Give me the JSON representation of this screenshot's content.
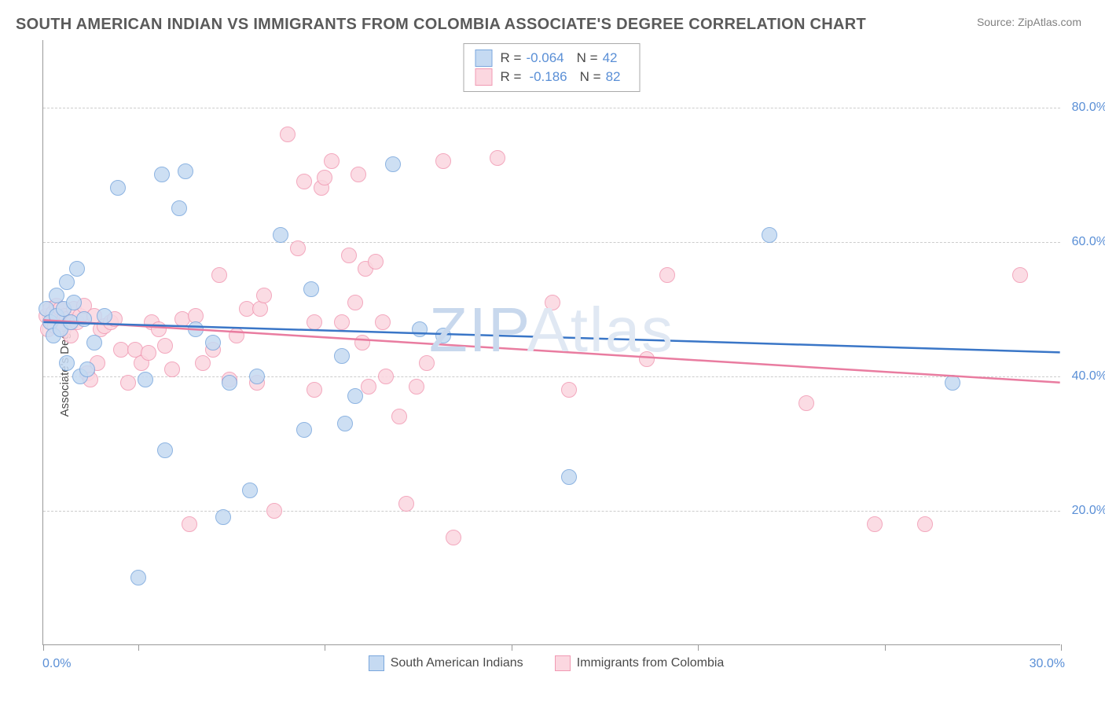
{
  "title": "SOUTH AMERICAN INDIAN VS IMMIGRANTS FROM COLOMBIA ASSOCIATE'S DEGREE CORRELATION CHART",
  "source": "Source: ZipAtlas.com",
  "y_axis_label": "Associate's Degree",
  "x_axis": {
    "min": 0,
    "max": 30,
    "label_left": "0.0%",
    "label_right": "30.0%",
    "ticks": [
      0,
      2.8,
      8.3,
      13.8,
      19.3,
      24.8,
      30
    ]
  },
  "y_axis": {
    "min": 0,
    "max": 90,
    "gridlines": [
      {
        "value": 20,
        "label": "20.0%"
      },
      {
        "value": 40,
        "label": "40.0%"
      },
      {
        "value": 60,
        "label": "60.0%"
      },
      {
        "value": 80,
        "label": "80.0%"
      }
    ]
  },
  "colors": {
    "blue_fill": "#c5daf2",
    "blue_stroke": "#7aa7dd",
    "pink_fill": "#fbd7e0",
    "pink_stroke": "#f19ab3",
    "blue_line": "#3a76c7",
    "pink_line": "#e97ca0",
    "grid": "#cccccc",
    "axis": "#999999",
    "label_blue": "#5a8fd6",
    "text_gray": "#4a4a4a",
    "watermark": "#e6edf6"
  },
  "marker_radius": 10,
  "marker_border": 1.5,
  "top_legend": [
    {
      "color": "blue",
      "r": "-0.064",
      "n": "42"
    },
    {
      "color": "pink",
      "r": "-0.186",
      "n": "82"
    }
  ],
  "bottom_legend": [
    {
      "color": "blue",
      "label": "South American Indians"
    },
    {
      "color": "pink",
      "label": "Immigrants from Colombia"
    }
  ],
  "trend_lines": {
    "blue": {
      "y_start": 48.0,
      "y_end": 43.5
    },
    "pink": {
      "y_start": 48.3,
      "y_end": 39.0
    }
  },
  "watermark": {
    "text1": "ZIP",
    "text2": "Atlas",
    "color1": "#c8d8ed",
    "color2": "#e0e8f3"
  },
  "series_blue": [
    [
      0.1,
      50
    ],
    [
      0.2,
      48
    ],
    [
      0.3,
      46
    ],
    [
      0.4,
      52
    ],
    [
      0.4,
      49
    ],
    [
      0.5,
      47
    ],
    [
      0.6,
      50
    ],
    [
      0.7,
      42
    ],
    [
      0.7,
      54
    ],
    [
      0.8,
      48
    ],
    [
      0.9,
      51
    ],
    [
      1.0,
      56
    ],
    [
      1.1,
      40
    ],
    [
      1.2,
      48.5
    ],
    [
      1.3,
      41
    ],
    [
      1.5,
      45
    ],
    [
      1.8,
      49
    ],
    [
      2.2,
      68
    ],
    [
      2.8,
      10
    ],
    [
      3.0,
      39.5
    ],
    [
      3.5,
      70
    ],
    [
      3.6,
      29
    ],
    [
      4.0,
      65
    ],
    [
      4.2,
      70.5
    ],
    [
      4.5,
      47
    ],
    [
      5.0,
      45
    ],
    [
      5.3,
      19
    ],
    [
      5.5,
      39
    ],
    [
      6.1,
      23
    ],
    [
      6.3,
      40
    ],
    [
      7.0,
      61
    ],
    [
      7.7,
      32
    ],
    [
      7.9,
      53
    ],
    [
      8.8,
      43
    ],
    [
      8.9,
      33
    ],
    [
      9.2,
      37
    ],
    [
      10.3,
      71.5
    ],
    [
      11.1,
      47
    ],
    [
      11.8,
      46
    ],
    [
      15.5,
      25
    ],
    [
      21.4,
      61
    ],
    [
      26.8,
      39
    ]
  ],
  "series_pink": [
    [
      0.1,
      49
    ],
    [
      0.15,
      47
    ],
    [
      0.2,
      50
    ],
    [
      0.25,
      48
    ],
    [
      0.3,
      49.5
    ],
    [
      0.35,
      47.5
    ],
    [
      0.4,
      50.5
    ],
    [
      0.45,
      49
    ],
    [
      0.5,
      50
    ],
    [
      0.55,
      48
    ],
    [
      0.6,
      47
    ],
    [
      0.65,
      49
    ],
    [
      0.7,
      48.5
    ],
    [
      0.8,
      46
    ],
    [
      0.85,
      48
    ],
    [
      0.9,
      50
    ],
    [
      1.0,
      48
    ],
    [
      1.1,
      49
    ],
    [
      1.2,
      50.5
    ],
    [
      1.3,
      40.5
    ],
    [
      1.4,
      39.5
    ],
    [
      1.5,
      49
    ],
    [
      1.6,
      42
    ],
    [
      1.7,
      47
    ],
    [
      1.8,
      47.5
    ],
    [
      2.0,
      48
    ],
    [
      2.1,
      48.5
    ],
    [
      2.3,
      44
    ],
    [
      2.5,
      39
    ],
    [
      2.7,
      44
    ],
    [
      2.9,
      42
    ],
    [
      3.1,
      43.5
    ],
    [
      3.2,
      48
    ],
    [
      3.4,
      47
    ],
    [
      3.6,
      44.5
    ],
    [
      3.8,
      41
    ],
    [
      4.1,
      48.5
    ],
    [
      4.3,
      18
    ],
    [
      4.5,
      49
    ],
    [
      4.7,
      42
    ],
    [
      5.0,
      44
    ],
    [
      5.2,
      55
    ],
    [
      5.5,
      39.5
    ],
    [
      5.7,
      46
    ],
    [
      6.0,
      50
    ],
    [
      6.3,
      39
    ],
    [
      6.4,
      50
    ],
    [
      6.5,
      52
    ],
    [
      6.8,
      20
    ],
    [
      7.2,
      76
    ],
    [
      7.5,
      59
    ],
    [
      7.7,
      69
    ],
    [
      8.0,
      38
    ],
    [
      8.0,
      48
    ],
    [
      8.2,
      68
    ],
    [
      8.3,
      69.5
    ],
    [
      8.5,
      72
    ],
    [
      8.8,
      48
    ],
    [
      9.0,
      58
    ],
    [
      9.2,
      51
    ],
    [
      9.3,
      70
    ],
    [
      9.4,
      45
    ],
    [
      9.5,
      56
    ],
    [
      9.6,
      38.5
    ],
    [
      9.8,
      57
    ],
    [
      10.0,
      48
    ],
    [
      10.1,
      40
    ],
    [
      10.5,
      34
    ],
    [
      10.7,
      21
    ],
    [
      11.0,
      38.5
    ],
    [
      11.3,
      42
    ],
    [
      11.8,
      72
    ],
    [
      12.1,
      16
    ],
    [
      13.4,
      72.5
    ],
    [
      15.0,
      51
    ],
    [
      15.5,
      38
    ],
    [
      17.8,
      42.5
    ],
    [
      18.4,
      55
    ],
    [
      22.5,
      36
    ],
    [
      24.5,
      18
    ],
    [
      26.0,
      18
    ],
    [
      28.8,
      55
    ]
  ]
}
